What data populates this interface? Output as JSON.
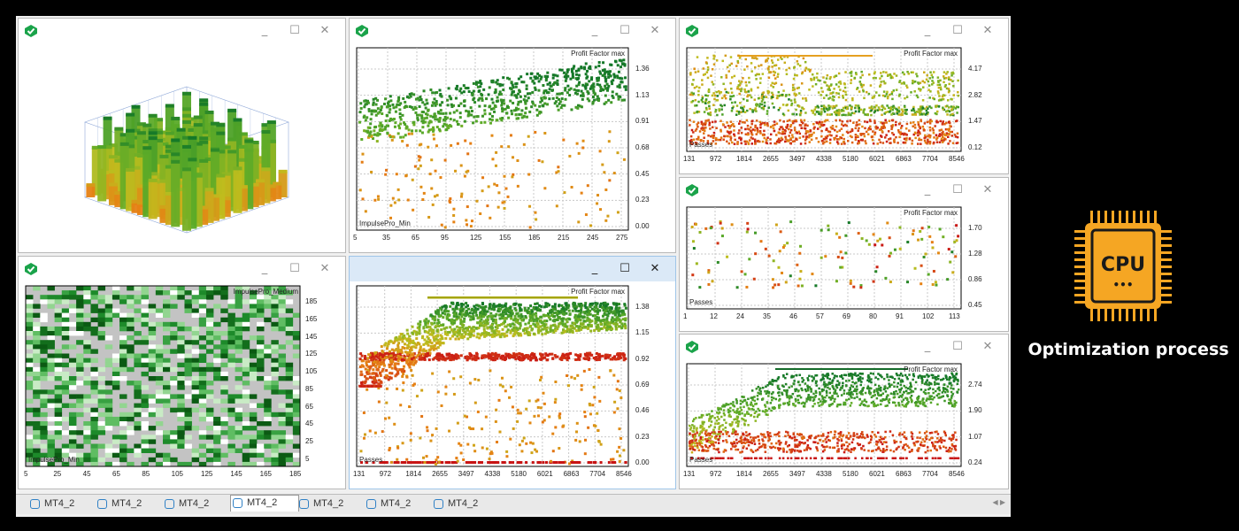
{
  "windows": [
    {
      "id": "w3d",
      "kind": "surface3d"
    },
    {
      "id": "w_top_mid",
      "kind": "scatter",
      "title_label": "Profit Factor max",
      "axis_label": "ImpulsePro_Min",
      "yticks": [
        "1.36",
        "1.13",
        "0.91",
        "0.68",
        "0.45",
        "0.23",
        "0.00"
      ],
      "xticks": [
        "5",
        "35",
        "65",
        "95",
        "125",
        "155",
        "185",
        "215",
        "245",
        "275"
      ]
    },
    {
      "id": "w_top_right",
      "kind": "scatter",
      "title_label": "Profit Factor max",
      "axis_label": "Passes",
      "yticks": [
        "4.17",
        "2.82",
        "1.47",
        "0.12"
      ],
      "xticks": [
        "131",
        "972",
        "1814",
        "2655",
        "3497",
        "4338",
        "5180",
        "6021",
        "6863",
        "7704",
        "8546"
      ]
    },
    {
      "id": "w_heat",
      "kind": "heatmap",
      "top_label": "ImpulsePro_Medium",
      "bottom_label": "ImpulsePro_Min",
      "yticks": [
        "185",
        "165",
        "145",
        "125",
        "105",
        "85",
        "65",
        "45",
        "25",
        "5"
      ],
      "xticks": [
        "5",
        "25",
        "45",
        "65",
        "85",
        "105",
        "125",
        "145",
        "165",
        "185"
      ]
    },
    {
      "id": "w_mid",
      "kind": "scatter",
      "title_label": "Profit Factor max",
      "axis_label": "Passes",
      "yticks": [
        "1.38",
        "1.15",
        "0.92",
        "0.69",
        "0.46",
        "0.23",
        "0.00"
      ],
      "xticks": [
        "131",
        "972",
        "1814",
        "2655",
        "3497",
        "4338",
        "5180",
        "6021",
        "6863",
        "7704",
        "8546"
      ]
    },
    {
      "id": "w_right_mid",
      "kind": "scatter",
      "title_label": "Profit Factor max",
      "axis_label": "Passes",
      "yticks": [
        "1.70",
        "1.28",
        "0.86",
        "0.45"
      ],
      "xticks": [
        "1",
        "12",
        "24",
        "35",
        "46",
        "57",
        "69",
        "80",
        "91",
        "102",
        "113"
      ]
    },
    {
      "id": "w_right_bot",
      "kind": "scatter",
      "title_label": "Profit Factor max",
      "axis_label": "Passes",
      "yticks": [
        "2.74",
        "1.90",
        "1.07",
        "0.24"
      ],
      "xticks": [
        "131",
        "972",
        "1814",
        "2655",
        "3497",
        "4338",
        "5180",
        "6021",
        "6863",
        "7704",
        "8546"
      ]
    }
  ],
  "window_buttons": {
    "minimize": "_",
    "maximize": "☐",
    "close": "✕"
  },
  "tabs": [
    {
      "label": "MT4_2"
    },
    {
      "label": "MT4_2"
    },
    {
      "label": "MT4_2"
    },
    {
      "label": "MT4_2",
      "active": true
    },
    {
      "label": "MT4_2"
    },
    {
      "label": "MT4_2"
    },
    {
      "label": "MT4_2"
    }
  ],
  "tab_scroll_arrows": "◀ ▶",
  "side": {
    "chip_text": "CPU",
    "chip_dots": "•••",
    "title": "Optimization process"
  },
  "colors": {
    "accent_green": "#1aa34a",
    "cpu_orange": "#f5a623",
    "active_border": "#9fc5e8"
  }
}
